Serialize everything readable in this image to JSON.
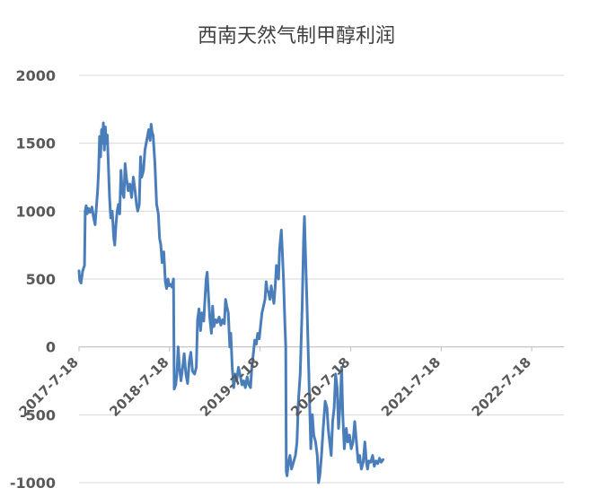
{
  "chart_data": {
    "type": "line",
    "title": "西南天然气制甲醇利润",
    "xlabel": "",
    "ylabel": "",
    "ylim": [
      -1000,
      2000
    ],
    "yticks": [
      2000,
      1500,
      1000,
      500,
      0,
      -500,
      -1000
    ],
    "ytick_labels": [
      "2000",
      "1500",
      "1000",
      "500",
      "0",
      "-500",
      "-1000"
    ],
    "x_range": [
      "2017-07-18",
      "2022-11-25"
    ],
    "xtick_labels": [
      "2017-7-18",
      "2018-7-18",
      "2019-7-18",
      "2020-7-18",
      "2021-7-18",
      "2022-7-18"
    ],
    "xtick_dates": [
      "2017-07-18",
      "2018-07-18",
      "2019-07-18",
      "2020-07-18",
      "2021-07-18",
      "2022-07-18"
    ],
    "grid": true,
    "legend": "none",
    "line_color": "#4a7ebb",
    "series": [
      {
        "name": "",
        "points": [
          [
            "2017-07-18",
            560
          ],
          [
            "2017-07-21",
            490
          ],
          [
            "2017-07-26",
            470
          ],
          [
            "2017-08-02",
            560
          ],
          [
            "2017-08-09",
            600
          ],
          [
            "2017-08-12",
            1000
          ],
          [
            "2017-08-16",
            1040
          ],
          [
            "2017-08-20",
            980
          ],
          [
            "2017-08-25",
            1020
          ],
          [
            "2017-09-01",
            990
          ],
          [
            "2017-09-08",
            1030
          ],
          [
            "2017-09-15",
            950
          ],
          [
            "2017-09-21",
            900
          ],
          [
            "2017-09-25",
            1000
          ],
          [
            "2017-10-01",
            1150
          ],
          [
            "2017-10-05",
            1300
          ],
          [
            "2017-10-09",
            1550
          ],
          [
            "2017-10-13",
            1400
          ],
          [
            "2017-10-17",
            1600
          ],
          [
            "2017-10-20",
            1500
          ],
          [
            "2017-10-24",
            1650
          ],
          [
            "2017-10-28",
            1450
          ],
          [
            "2017-11-01",
            1620
          ],
          [
            "2017-11-05",
            1500
          ],
          [
            "2017-11-09",
            1560
          ],
          [
            "2017-11-14",
            1300
          ],
          [
            "2017-11-18",
            1100
          ],
          [
            "2017-11-23",
            950
          ],
          [
            "2017-11-29",
            1000
          ],
          [
            "2017-12-05",
            800
          ],
          [
            "2017-12-09",
            750
          ],
          [
            "2017-12-14",
            900
          ],
          [
            "2017-12-19",
            1000
          ],
          [
            "2017-12-24",
            1050
          ],
          [
            "2017-12-29",
            980
          ],
          [
            "2018-01-03",
            1300
          ],
          [
            "2018-01-08",
            1150
          ],
          [
            "2018-01-15",
            1100
          ],
          [
            "2018-01-20",
            1350
          ],
          [
            "2018-01-25",
            1250
          ],
          [
            "2018-02-01",
            1150
          ],
          [
            "2018-02-08",
            1200
          ],
          [
            "2018-02-15",
            1100
          ],
          [
            "2018-02-22",
            1250
          ],
          [
            "2018-03-01",
            1150
          ],
          [
            "2018-03-07",
            1050
          ],
          [
            "2018-03-12",
            1000
          ],
          [
            "2018-03-18",
            1050
          ],
          [
            "2018-03-23",
            1400
          ],
          [
            "2018-03-28",
            1250
          ],
          [
            "2018-04-04",
            1300
          ],
          [
            "2018-04-10",
            1450
          ],
          [
            "2018-04-15",
            1500
          ],
          [
            "2018-04-20",
            1550
          ],
          [
            "2018-04-25",
            1600
          ],
          [
            "2018-05-01",
            1520
          ],
          [
            "2018-05-05",
            1640
          ],
          [
            "2018-05-09",
            1580
          ],
          [
            "2018-05-13",
            1560
          ],
          [
            "2018-05-20",
            1350
          ],
          [
            "2018-05-27",
            1050
          ],
          [
            "2018-06-03",
            980
          ],
          [
            "2018-06-08",
            800
          ],
          [
            "2018-06-13",
            750
          ],
          [
            "2018-06-18",
            620
          ],
          [
            "2018-06-25",
            700
          ],
          [
            "2018-07-01",
            480
          ],
          [
            "2018-07-06",
            430
          ],
          [
            "2018-07-12",
            500
          ],
          [
            "2018-07-17",
            450
          ],
          [
            "2018-07-22",
            460
          ],
          [
            "2018-07-28",
            440
          ],
          [
            "2018-08-03",
            500
          ],
          [
            "2018-08-06",
            -310
          ],
          [
            "2018-08-12",
            -280
          ],
          [
            "2018-08-17",
            -200
          ],
          [
            "2018-08-22",
            0
          ],
          [
            "2018-08-27",
            -150
          ],
          [
            "2018-09-02",
            -250
          ],
          [
            "2018-09-09",
            -150
          ],
          [
            "2018-09-15",
            -50
          ],
          [
            "2018-09-22",
            -200
          ],
          [
            "2018-09-29",
            -270
          ],
          [
            "2018-10-06",
            -100
          ],
          [
            "2018-10-12",
            -40
          ],
          [
            "2018-10-19",
            -180
          ],
          [
            "2018-10-27",
            -200
          ],
          [
            "2018-11-03",
            -150
          ],
          [
            "2018-11-08",
            200
          ],
          [
            "2018-11-14",
            280
          ],
          [
            "2018-11-20",
            120
          ],
          [
            "2018-11-26",
            250
          ],
          [
            "2018-12-03",
            190
          ],
          [
            "2018-12-08",
            350
          ],
          [
            "2018-12-13",
            500
          ],
          [
            "2018-12-17",
            550
          ],
          [
            "2018-12-21",
            420
          ],
          [
            "2018-12-27",
            220
          ],
          [
            "2019-01-03",
            100
          ],
          [
            "2019-01-08",
            300
          ],
          [
            "2019-01-13",
            150
          ],
          [
            "2019-01-20",
            200
          ],
          [
            "2019-01-27",
            180
          ],
          [
            "2019-02-03",
            220
          ],
          [
            "2019-02-10",
            160
          ],
          [
            "2019-02-17",
            200
          ],
          [
            "2019-02-24",
            170
          ],
          [
            "2019-03-01",
            350
          ],
          [
            "2019-03-06",
            300
          ],
          [
            "2019-03-12",
            250
          ],
          [
            "2019-03-18",
            0
          ],
          [
            "2019-03-22",
            100
          ],
          [
            "2019-03-28",
            -150
          ],
          [
            "2019-04-03",
            -300
          ],
          [
            "2019-04-09",
            -200
          ],
          [
            "2019-04-15",
            -250
          ],
          [
            "2019-04-22",
            -150
          ],
          [
            "2019-04-28",
            -200
          ],
          [
            "2019-05-06",
            -280
          ],
          [
            "2019-05-13",
            -250
          ],
          [
            "2019-05-20",
            -300
          ],
          [
            "2019-05-27",
            -220
          ],
          [
            "2019-06-03",
            -280
          ],
          [
            "2019-06-10",
            -300
          ],
          [
            "2019-06-15",
            -150
          ],
          [
            "2019-06-21",
            -50
          ],
          [
            "2019-06-27",
            50
          ],
          [
            "2019-07-03",
            20
          ],
          [
            "2019-07-09",
            100
          ],
          [
            "2019-07-15",
            60
          ],
          [
            "2019-07-20",
            150
          ],
          [
            "2019-07-26",
            250
          ],
          [
            "2019-08-01",
            300
          ],
          [
            "2019-08-07",
            350
          ],
          [
            "2019-08-12",
            480
          ],
          [
            "2019-08-16",
            420
          ],
          [
            "2019-08-21",
            400
          ],
          [
            "2019-08-27",
            350
          ],
          [
            "2019-09-01",
            450
          ],
          [
            "2019-09-07",
            380
          ],
          [
            "2019-09-12",
            320
          ],
          [
            "2019-09-17",
            440
          ],
          [
            "2019-09-22",
            600
          ],
          [
            "2019-09-26",
            550
          ],
          [
            "2019-10-01",
            500
          ],
          [
            "2019-10-05",
            720
          ],
          [
            "2019-10-09",
            800
          ],
          [
            "2019-10-12",
            860
          ],
          [
            "2019-10-16",
            700
          ],
          [
            "2019-10-21",
            480
          ],
          [
            "2019-10-26",
            200
          ],
          [
            "2019-10-30",
            0
          ],
          [
            "2019-11-01",
            -920
          ],
          [
            "2019-11-04",
            -950
          ],
          [
            "2019-11-10",
            -850
          ],
          [
            "2019-11-16",
            -800
          ],
          [
            "2019-11-22",
            -900
          ],
          [
            "2019-11-30",
            -850
          ],
          [
            "2019-12-08",
            -800
          ],
          [
            "2019-12-14",
            -700
          ],
          [
            "2019-12-20",
            -400
          ],
          [
            "2019-12-27",
            -200
          ],
          [
            "2020-01-04",
            300
          ],
          [
            "2020-01-10",
            800
          ],
          [
            "2020-01-13",
            960
          ],
          [
            "2020-01-17",
            700
          ],
          [
            "2020-01-23",
            350
          ],
          [
            "2020-01-28",
            0
          ],
          [
            "2020-02-03",
            -400
          ],
          [
            "2020-02-08",
            -750
          ],
          [
            "2020-02-14",
            -500
          ],
          [
            "2020-02-20",
            -650
          ],
          [
            "2020-02-27",
            -700
          ],
          [
            "2020-03-05",
            -800
          ],
          [
            "2020-03-10",
            -1000
          ],
          [
            "2020-03-15",
            -950
          ],
          [
            "2020-03-22",
            -800
          ],
          [
            "2020-03-29",
            -600
          ],
          [
            "2020-04-06",
            -400
          ],
          [
            "2020-04-13",
            -450
          ],
          [
            "2020-04-18",
            -600
          ],
          [
            "2020-04-24",
            -700
          ],
          [
            "2020-04-30",
            -800
          ],
          [
            "2020-05-06",
            -550
          ],
          [
            "2020-05-12",
            -450
          ],
          [
            "2020-05-18",
            -200
          ],
          [
            "2020-05-24",
            -300
          ],
          [
            "2020-05-30",
            -600
          ],
          [
            "2020-06-06",
            -400
          ],
          [
            "2020-06-11",
            -150
          ],
          [
            "2020-06-16",
            -500
          ],
          [
            "2020-06-22",
            -750
          ],
          [
            "2020-06-30",
            -600
          ],
          [
            "2020-07-06",
            -700
          ],
          [
            "2020-07-13",
            -650
          ],
          [
            "2020-07-20",
            -750
          ],
          [
            "2020-07-27",
            -700
          ],
          [
            "2020-08-03",
            -550
          ],
          [
            "2020-08-10",
            -700
          ],
          [
            "2020-08-17",
            -850
          ],
          [
            "2020-08-23",
            -800
          ],
          [
            "2020-08-30",
            -900
          ],
          [
            "2020-09-06",
            -850
          ],
          [
            "2020-09-13",
            -700
          ],
          [
            "2020-09-19",
            -850
          ],
          [
            "2020-09-24",
            -900
          ],
          [
            "2020-09-29",
            -840
          ],
          [
            "2020-10-07",
            -850
          ],
          [
            "2020-10-14",
            -800
          ],
          [
            "2020-10-21",
            -880
          ],
          [
            "2020-10-28",
            -840
          ],
          [
            "2020-11-04",
            -860
          ],
          [
            "2020-11-11",
            -820
          ],
          [
            "2020-11-18",
            -850
          ],
          [
            "2020-11-25",
            -830
          ]
        ]
      }
    ]
  }
}
